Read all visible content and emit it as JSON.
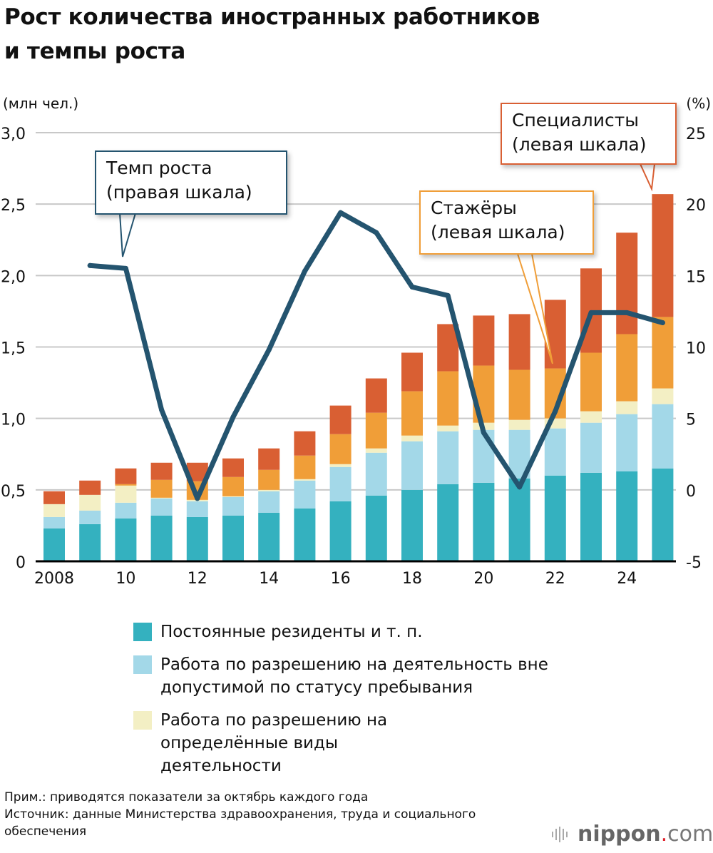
{
  "title": {
    "line1": "Рост количества иностранных работников",
    "line2": "и темпы роста"
  },
  "chart_data": {
    "type": "bar",
    "stacked": true,
    "left_axis": {
      "label": "(млн чел.)",
      "ylim": [
        0,
        3.0
      ],
      "ticks": [
        "0",
        "0,5",
        "1,0",
        "1,5",
        "2,0",
        "2,5",
        "3,0"
      ]
    },
    "right_axis": {
      "label": "(%)",
      "ylim": [
        -5,
        25
      ],
      "ticks": [
        "-5",
        "0",
        "5",
        "10",
        "15",
        "20",
        "25"
      ]
    },
    "x": [
      2008,
      2009,
      2010,
      2011,
      2012,
      2013,
      2014,
      2015,
      2016,
      2017,
      2018,
      2019,
      2020,
      2021,
      2022,
      2023,
      2024,
      2025
    ],
    "x_tick_labels": {
      "2008": "2008",
      "2010": "10",
      "2012": "12",
      "2014": "14",
      "2016": "16",
      "2018": "18",
      "2020": "20",
      "2022": "22",
      "2024": "24"
    },
    "grid": true,
    "series": [
      {
        "name": "Постоянные резиденты и т. п.",
        "color": "#34b1bf",
        "values": [
          0.23,
          0.26,
          0.3,
          0.32,
          0.31,
          0.32,
          0.34,
          0.37,
          0.42,
          0.46,
          0.5,
          0.54,
          0.55,
          0.58,
          0.6,
          0.62,
          0.63,
          0.65
        ]
      },
      {
        "name": "Работа по разрешению на деятельность вне допустимой по статусу пребывания",
        "color": "#a3d8e8",
        "values": [
          0.08,
          0.095,
          0.11,
          0.12,
          0.11,
          0.13,
          0.15,
          0.195,
          0.24,
          0.3,
          0.34,
          0.37,
          0.37,
          0.34,
          0.33,
          0.35,
          0.4,
          0.45
        ]
      },
      {
        "name": "Работа по разрешению на определённые виды деятельности",
        "color": "#f3efc4",
        "values": [
          0.09,
          0.11,
          0.12,
          0.005,
          0.01,
          0.005,
          0.01,
          0.01,
          0.02,
          0.03,
          0.04,
          0.04,
          0.05,
          0.07,
          0.07,
          0.08,
          0.09,
          0.11
        ]
      },
      {
        "name": "Стажёры",
        "color": "#f09e38",
        "values": [
          0,
          0,
          0.01,
          0.125,
          0.13,
          0.135,
          0.14,
          0.165,
          0.21,
          0.25,
          0.31,
          0.38,
          0.4,
          0.35,
          0.35,
          0.41,
          0.47,
          0.5
        ]
      },
      {
        "name": "Специалисты",
        "color": "#d95f33",
        "values": [
          0.09,
          0.1,
          0.11,
          0.12,
          0.13,
          0.13,
          0.15,
          0.17,
          0.2,
          0.24,
          0.27,
          0.33,
          0.35,
          0.39,
          0.48,
          0.59,
          0.71,
          0.86
        ]
      }
    ],
    "line": {
      "name": "Темп роста",
      "color": "#24546f",
      "axis": "right",
      "x": [
        2009,
        2010,
        2011,
        2012,
        2013,
        2014,
        2015,
        2016,
        2017,
        2018,
        2019,
        2020,
        2021,
        2022,
        2023,
        2024,
        2025
      ],
      "values": [
        15.7,
        15.5,
        5.6,
        -0.6,
        5.1,
        9.8,
        15.3,
        19.4,
        18.0,
        14.2,
        13.6,
        4.0,
        0.2,
        5.5,
        12.4,
        12.4,
        11.7
      ]
    }
  },
  "callouts": {
    "growth": {
      "line1": "Темп роста",
      "line2": "(правая шкала)",
      "color": "#24546f"
    },
    "trainees": {
      "line1": "Стажёры",
      "line2": "(левая шкала)",
      "color": "#f09e38"
    },
    "specialists": {
      "line1": "Специалисты",
      "line2": "(левая шкала)",
      "color": "#d95f33"
    }
  },
  "legend": [
    {
      "label": "Постоянные резиденты и т. п."
    },
    {
      "label": "Работа по разрешению на деятельность вне допустимой по статусу пребывания"
    },
    {
      "label": "Работа по разрешению на определённые виды деятельности"
    }
  ],
  "footer": {
    "note": "Прим.: приводятся показатели за октябрь каждого года",
    "source": "Источник: данные Министерства здравоохранения, труда и социального обеспечения",
    "logo": {
      "main": "nippon",
      "dot": ".",
      "suffix": "com"
    }
  }
}
